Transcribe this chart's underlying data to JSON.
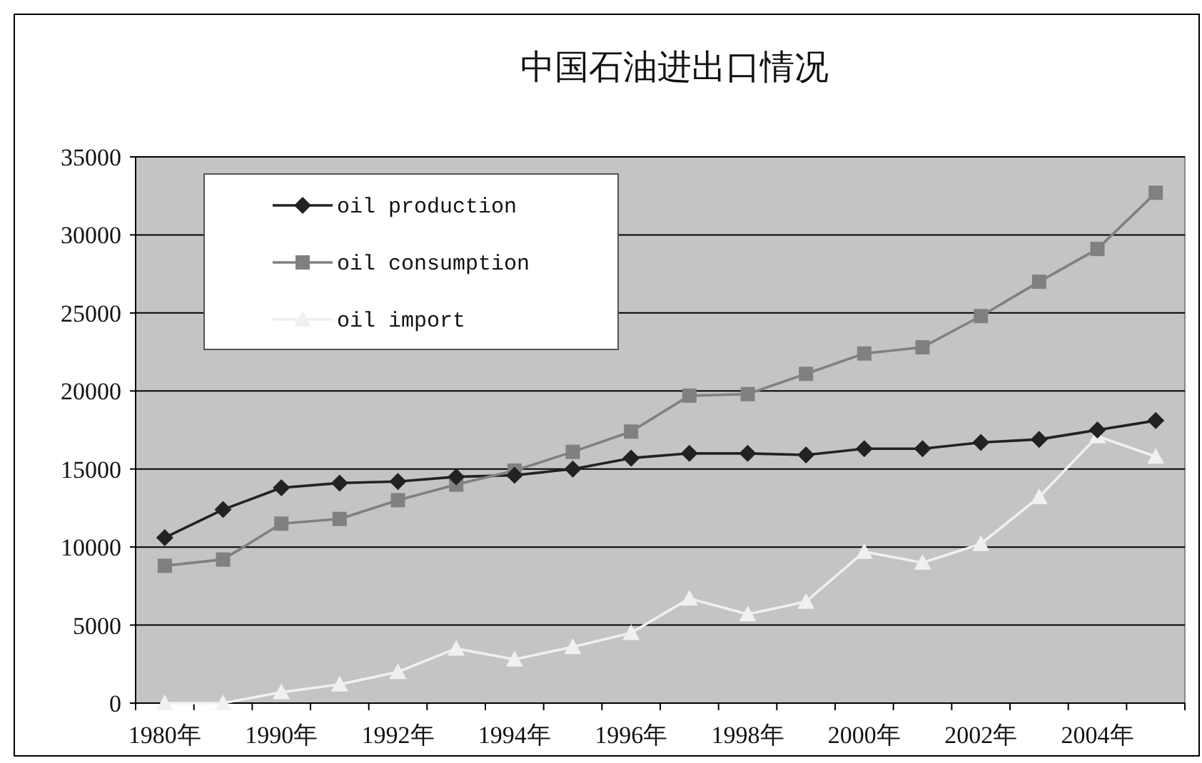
{
  "chart_data": {
    "type": "line",
    "title": "中国石油进出口情况",
    "categories": [
      "1980年",
      null,
      "1990年",
      null,
      "1992年",
      null,
      "1994年",
      null,
      "1996年",
      null,
      "1998年",
      null,
      "2000年",
      null,
      "2002年",
      null,
      "2004年",
      null
    ],
    "series": [
      {
        "name": "oil production",
        "color": "#222222",
        "marker": "diamond",
        "values": [
          10600,
          12400,
          13800,
          14100,
          14200,
          14500,
          14600,
          15000,
          15700,
          16000,
          16000,
          15900,
          16300,
          16300,
          16700,
          16900,
          17500,
          18100
        ]
      },
      {
        "name": "oil consumption",
        "color": "#808080",
        "marker": "square",
        "values": [
          8800,
          9200,
          11500,
          11800,
          13000,
          14000,
          14900,
          16100,
          17400,
          19700,
          19800,
          21100,
          22400,
          22800,
          24800,
          27000,
          29100,
          32700
        ]
      },
      {
        "name": "oil import",
        "color": "#f0f0f0",
        "marker": "triangle",
        "values": [
          0,
          0,
          700,
          1200,
          2000,
          3500,
          2800,
          3600,
          4500,
          6700,
          5700,
          6500,
          9700,
          9000,
          10200,
          13200,
          17100,
          15800
        ]
      }
    ],
    "ylim": [
      0,
      35000
    ],
    "yticks": [
      0,
      5000,
      10000,
      15000,
      20000,
      25000,
      30000,
      35000
    ],
    "grid": "y",
    "legend": "top left"
  }
}
